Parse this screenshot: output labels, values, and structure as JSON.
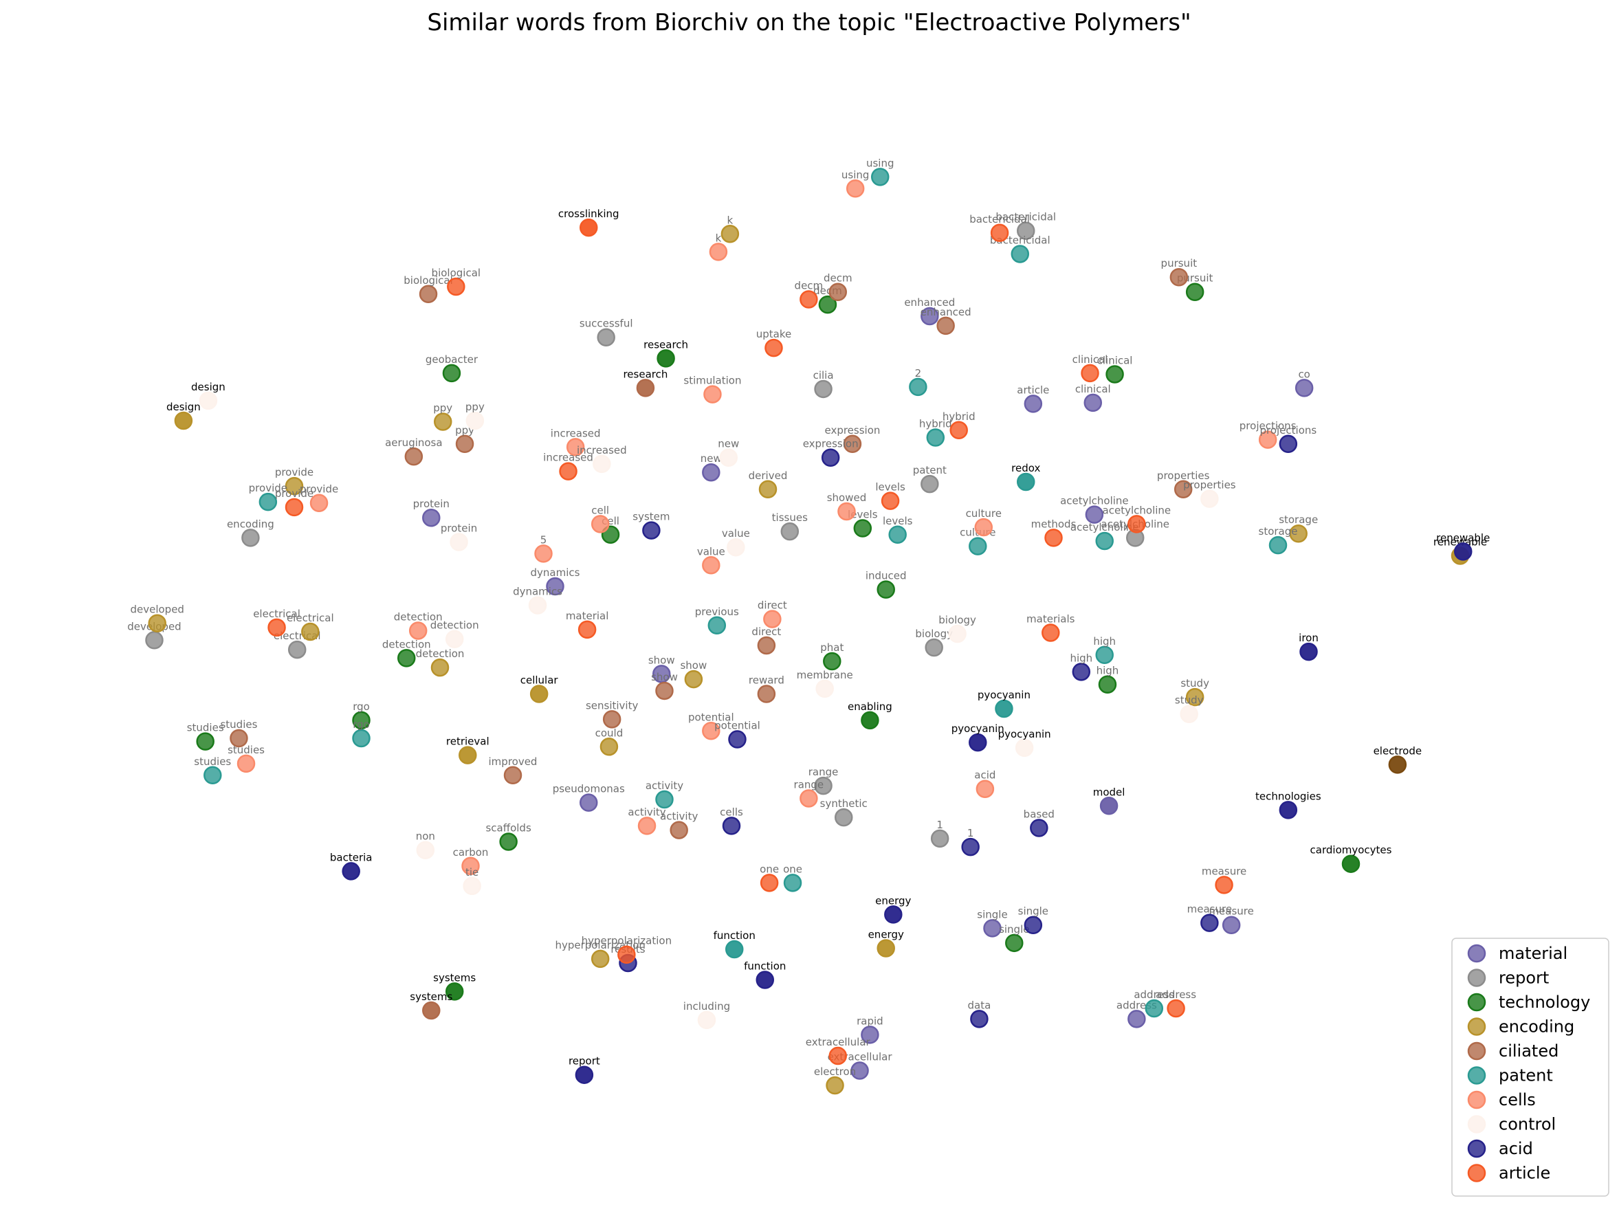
{
  "chart_data": {
    "type": "scatter",
    "title": "Similar words from Biorchiv on the topic \"Electroactive Polymers\"",
    "xlabel": "",
    "ylabel": "",
    "xlim": [
      0,
      1000
    ],
    "ylim": [
      0,
      1000
    ],
    "grid": false,
    "axes_visible": false,
    "legend_position": "bottom-right",
    "series": [
      {
        "name": "material",
        "color": "#6a5fa8",
        "points": [
          {
            "x": 244,
            "y": 594,
            "label": "protein"
          },
          {
            "x": 329,
            "y": 529,
            "label": "dynamics"
          },
          {
            "x": 436,
            "y": 637,
            "label": "new"
          },
          {
            "x": 586,
            "y": 785,
            "label": "enhanced"
          },
          {
            "x": 657,
            "y": 702,
            "label": "article"
          },
          {
            "x": 698,
            "y": 703,
            "label": "clinical"
          },
          {
            "x": 843,
            "y": 717,
            "label": "co"
          },
          {
            "x": 699,
            "y": 597,
            "label": "acetylcholine"
          },
          {
            "x": 402,
            "y": 446,
            "label": "show"
          },
          {
            "x": 352,
            "y": 324,
            "label": "pseudomonas"
          },
          {
            "x": 709,
            "y": 321,
            "label": "model"
          },
          {
            "x": 629,
            "y": 205,
            "label": "single"
          },
          {
            "x": 793,
            "y": 208,
            "label": "measure"
          },
          {
            "x": 545,
            "y": 104,
            "label": "rapid"
          },
          {
            "x": 538,
            "y": 70,
            "label": "extracellular"
          },
          {
            "x": 728,
            "y": 119,
            "label": "address"
          }
        ]
      },
      {
        "name": "report",
        "color": "#8c8c8c",
        "points": [
          {
            "x": 364,
            "y": 765,
            "label": "successful"
          },
          {
            "x": 513,
            "y": 716,
            "label": "cilia"
          },
          {
            "x": 652,
            "y": 866,
            "label": "bactericidal"
          },
          {
            "x": 586,
            "y": 626,
            "label": "patent"
          },
          {
            "x": 120,
            "y": 575,
            "label": "encoding"
          },
          {
            "x": 490,
            "y": 581,
            "label": "tissues"
          },
          {
            "x": 727,
            "y": 575,
            "label": "acetylcholine"
          },
          {
            "x": 54,
            "y": 478,
            "label": "developed"
          },
          {
            "x": 152,
            "y": 469,
            "label": "electrical"
          },
          {
            "x": 589,
            "y": 471,
            "label": "biology"
          },
          {
            "x": 513,
            "y": 340,
            "label": "range"
          },
          {
            "x": 527,
            "y": 310,
            "label": "synthetic"
          },
          {
            "x": 593,
            "y": 290,
            "label": "1"
          }
        ]
      },
      {
        "name": "technology",
        "color": "#1a7a1a",
        "points": [
          {
            "x": 405,
            "y": 745,
            "label": "research"
          },
          {
            "x": 258,
            "y": 731,
            "label": "geobacter"
          },
          {
            "x": 516,
            "y": 796,
            "label": "decm"
          },
          {
            "x": 768,
            "y": 808,
            "label": "pursuit"
          },
          {
            "x": 713,
            "y": 730,
            "label": "clinical"
          },
          {
            "x": 367,
            "y": 578,
            "label": "cell"
          },
          {
            "x": 540,
            "y": 584,
            "label": "levels"
          },
          {
            "x": 556,
            "y": 526,
            "label": "induced"
          },
          {
            "x": 227,
            "y": 461,
            "label": "detection"
          },
          {
            "x": 519,
            "y": 458,
            "label": "phat"
          },
          {
            "x": 708,
            "y": 436,
            "label": "high"
          },
          {
            "x": 545,
            "y": 402,
            "label": "enabling"
          },
          {
            "x": 89,
            "y": 382,
            "label": "studies"
          },
          {
            "x": 196,
            "y": 402,
            "label": "rgo"
          },
          {
            "x": 297,
            "y": 287,
            "label": "scaffolds"
          },
          {
            "x": 875,
            "y": 266,
            "label": "cardiomyocytes"
          },
          {
            "x": 644,
            "y": 191,
            "label": "single"
          },
          {
            "x": 260,
            "y": 145,
            "label": "systems"
          }
        ]
      },
      {
        "name": "encoding",
        "color": "#b8922a",
        "points": [
          {
            "x": 449,
            "y": 863,
            "label": "k"
          },
          {
            "x": 74,
            "y": 686,
            "label": "design"
          },
          {
            "x": 252,
            "y": 685,
            "label": "ppy"
          },
          {
            "x": 150,
            "y": 624,
            "label": "provide"
          },
          {
            "x": 475,
            "y": 621,
            "label": "derived"
          },
          {
            "x": 839,
            "y": 579,
            "label": "storage"
          },
          {
            "x": 950,
            "y": 558,
            "label": "renewable"
          },
          {
            "x": 56,
            "y": 494,
            "label": "developed"
          },
          {
            "x": 161,
            "y": 486,
            "label": "electrical"
          },
          {
            "x": 250,
            "y": 452,
            "label": "detection"
          },
          {
            "x": 424,
            "y": 441,
            "label": "show"
          },
          {
            "x": 318,
            "y": 427,
            "label": "cellular"
          },
          {
            "x": 768,
            "y": 424,
            "label": "study"
          },
          {
            "x": 269,
            "y": 369,
            "label": "retrieval"
          },
          {
            "x": 366,
            "y": 377,
            "label": "could"
          },
          {
            "x": 556,
            "y": 186,
            "label": "energy"
          },
          {
            "x": 360,
            "y": 176,
            "label": "hyperpolarization"
          },
          {
            "x": 521,
            "y": 56,
            "label": "electron"
          }
        ]
      },
      {
        "name": "ciliated",
        "color": "#b06a4a",
        "points": [
          {
            "x": 242,
            "y": 806,
            "label": "biological"
          },
          {
            "x": 523,
            "y": 808,
            "label": "decm"
          },
          {
            "x": 597,
            "y": 776,
            "label": "enhanced"
          },
          {
            "x": 757,
            "y": 822,
            "label": "pursuit"
          },
          {
            "x": 391,
            "y": 717,
            "label": "research"
          },
          {
            "x": 232,
            "y": 652,
            "label": "aeruginosa"
          },
          {
            "x": 267,
            "y": 664,
            "label": "ppy"
          },
          {
            "x": 533,
            "y": 664,
            "label": "expression"
          },
          {
            "x": 760,
            "y": 621,
            "label": "properties"
          },
          {
            "x": 474,
            "y": 473,
            "label": "direct"
          },
          {
            "x": 404,
            "y": 430,
            "label": "show"
          },
          {
            "x": 474,
            "y": 427,
            "label": "reward"
          },
          {
            "x": 368,
            "y": 403,
            "label": "sensitivity"
          },
          {
            "x": 112,
            "y": 385,
            "label": "studies"
          },
          {
            "x": 300,
            "y": 350,
            "label": "improved"
          },
          {
            "x": 414,
            "y": 298,
            "label": "activity"
          },
          {
            "x": 244,
            "y": 127,
            "label": "systems"
          }
        ]
      },
      {
        "name": "patent",
        "color": "#2a9a92",
        "points": [
          {
            "x": 552,
            "y": 917,
            "label": "using"
          },
          {
            "x": 648,
            "y": 844,
            "label": "bactericidal"
          },
          {
            "x": 578,
            "y": 718,
            "label": "2"
          },
          {
            "x": 590,
            "y": 670,
            "label": "hybrid"
          },
          {
            "x": 652,
            "y": 628,
            "label": "redox"
          },
          {
            "x": 132,
            "y": 609,
            "label": "provide"
          },
          {
            "x": 564,
            "y": 578,
            "label": "levels"
          },
          {
            "x": 619,
            "y": 567,
            "label": "culture"
          },
          {
            "x": 706,
            "y": 572,
            "label": "acetylcholine"
          },
          {
            "x": 825,
            "y": 568,
            "label": "storage"
          },
          {
            "x": 440,
            "y": 492,
            "label": "previous"
          },
          {
            "x": 706,
            "y": 464,
            "label": "high"
          },
          {
            "x": 637,
            "y": 413,
            "label": "pyocyanin"
          },
          {
            "x": 196,
            "y": 385,
            "label": "rgo"
          },
          {
            "x": 94,
            "y": 350,
            "label": "studies"
          },
          {
            "x": 404,
            "y": 327,
            "label": "activity"
          },
          {
            "x": 492,
            "y": 248,
            "label": "one"
          },
          {
            "x": 452,
            "y": 185,
            "label": "function"
          },
          {
            "x": 740,
            "y": 129,
            "label": "address"
          }
        ]
      },
      {
        "name": "cells",
        "color": "#fa8a6a",
        "points": [
          {
            "x": 535,
            "y": 906,
            "label": "using"
          },
          {
            "x": 441,
            "y": 846,
            "label": "k"
          },
          {
            "x": 437,
            "y": 711,
            "label": "stimulation"
          },
          {
            "x": 343,
            "y": 661,
            "label": "increased"
          },
          {
            "x": 167,
            "y": 608,
            "label": "provide"
          },
          {
            "x": 529,
            "y": 600,
            "label": "showed"
          },
          {
            "x": 360,
            "y": 588,
            "label": "cell"
          },
          {
            "x": 321,
            "y": 560,
            "label": "5"
          },
          {
            "x": 436,
            "y": 549,
            "label": "value"
          },
          {
            "x": 623,
            "y": 585,
            "label": "culture"
          },
          {
            "x": 235,
            "y": 487,
            "label": "detection"
          },
          {
            "x": 478,
            "y": 498,
            "label": "direct"
          },
          {
            "x": 436,
            "y": 392,
            "label": "potential"
          },
          {
            "x": 117,
            "y": 361,
            "label": "studies"
          },
          {
            "x": 503,
            "y": 328,
            "label": "range"
          },
          {
            "x": 392,
            "y": 302,
            "label": "activity"
          },
          {
            "x": 624,
            "y": 337,
            "label": "acid"
          },
          {
            "x": 271,
            "y": 264,
            "label": "carbon"
          },
          {
            "x": 818,
            "y": 668,
            "label": "projections"
          }
        ]
      },
      {
        "name": "control",
        "color": "#fdf2ec",
        "points": [
          {
            "x": 91,
            "y": 705,
            "label": "design"
          },
          {
            "x": 274,
            "y": 686,
            "label": "ppy"
          },
          {
            "x": 361,
            "y": 645,
            "label": "increased"
          },
          {
            "x": 448,
            "y": 651,
            "label": "new"
          },
          {
            "x": 263,
            "y": 571,
            "label": "protein"
          },
          {
            "x": 453,
            "y": 566,
            "label": "value"
          },
          {
            "x": 317,
            "y": 511,
            "label": "dynamics"
          },
          {
            "x": 260,
            "y": 479,
            "label": "detection"
          },
          {
            "x": 605,
            "y": 484,
            "label": "biology"
          },
          {
            "x": 514,
            "y": 432,
            "label": "membrane"
          },
          {
            "x": 778,
            "y": 612,
            "label": "properties"
          },
          {
            "x": 764,
            "y": 408,
            "label": "study"
          },
          {
            "x": 651,
            "y": 376,
            "label": "pyocyanin"
          },
          {
            "x": 240,
            "y": 279,
            "label": "non"
          },
          {
            "x": 272,
            "y": 245,
            "label": "tie"
          },
          {
            "x": 433,
            "y": 118,
            "label": "including"
          }
        ]
      },
      {
        "name": "acid",
        "color": "#26228a",
        "points": [
          {
            "x": 518,
            "y": 651,
            "label": "expression"
          },
          {
            "x": 395,
            "y": 582,
            "label": "system"
          },
          {
            "x": 832,
            "y": 664,
            "label": "projections"
          },
          {
            "x": 952,
            "y": 562,
            "label": "renewable"
          },
          {
            "x": 690,
            "y": 448,
            "label": "high"
          },
          {
            "x": 846,
            "y": 467,
            "label": "iron"
          },
          {
            "x": 454,
            "y": 384,
            "label": "potential"
          },
          {
            "x": 619,
            "y": 381,
            "label": "pyocyanin"
          },
          {
            "x": 832,
            "y": 317,
            "label": "technologies"
          },
          {
            "x": 450,
            "y": 302,
            "label": "cells"
          },
          {
            "x": 661,
            "y": 300,
            "label": "based"
          },
          {
            "x": 614,
            "y": 282,
            "label": "1"
          },
          {
            "x": 189,
            "y": 259,
            "label": "bacteria"
          },
          {
            "x": 561,
            "y": 218,
            "label": "energy"
          },
          {
            "x": 657,
            "y": 208,
            "label": "single"
          },
          {
            "x": 778,
            "y": 210,
            "label": "measure"
          },
          {
            "x": 379,
            "y": 172,
            "label": "results"
          },
          {
            "x": 473,
            "y": 156,
            "label": "function"
          },
          {
            "x": 620,
            "y": 119,
            "label": "data"
          },
          {
            "x": 349,
            "y": 66,
            "label": "report"
          }
        ]
      },
      {
        "name": "article",
        "color": "#f55a25",
        "points": [
          {
            "x": 352,
            "y": 869,
            "label": "crosslinking"
          },
          {
            "x": 261,
            "y": 813,
            "label": "biological"
          },
          {
            "x": 503,
            "y": 801,
            "label": "decm"
          },
          {
            "x": 634,
            "y": 864,
            "label": "bactericidal"
          },
          {
            "x": 479,
            "y": 755,
            "label": "uptake"
          },
          {
            "x": 696,
            "y": 731,
            "label": "clinical"
          },
          {
            "x": 606,
            "y": 677,
            "label": "hybrid"
          },
          {
            "x": 338,
            "y": 638,
            "label": "increased"
          },
          {
            "x": 150,
            "y": 604,
            "label": "provide"
          },
          {
            "x": 559,
            "y": 610,
            "label": "levels"
          },
          {
            "x": 728,
            "y": 588,
            "label": "acetylcholine"
          },
          {
            "x": 671,
            "y": 575,
            "label": "methods"
          },
          {
            "x": 138,
            "y": 490,
            "label": "electrical"
          },
          {
            "x": 351,
            "y": 488,
            "label": "material"
          },
          {
            "x": 669,
            "y": 485,
            "label": "materials"
          },
          {
            "x": 476,
            "y": 248,
            "label": "one"
          },
          {
            "x": 378,
            "y": 180,
            "label": "hyperpolarization"
          },
          {
            "x": 788,
            "y": 246,
            "label": "measure"
          },
          {
            "x": 523,
            "y": 84,
            "label": "extracellular"
          },
          {
            "x": 755,
            "y": 129,
            "label": "address"
          }
        ]
      }
    ],
    "highlight_labels": [
      "crosslinking",
      "design",
      "research",
      "redox",
      "renewable",
      "cellular",
      "enabling",
      "pyocyanin",
      "retrieval",
      "electrode",
      "model",
      "technologies",
      "iron",
      "bacteria",
      "cardiomyocytes",
      "energy",
      "function",
      "systems",
      "report"
    ],
    "highlight_points": [
      {
        "x": 907,
        "y": 360,
        "label": "electrode",
        "color": "#7a4a10"
      }
    ]
  }
}
